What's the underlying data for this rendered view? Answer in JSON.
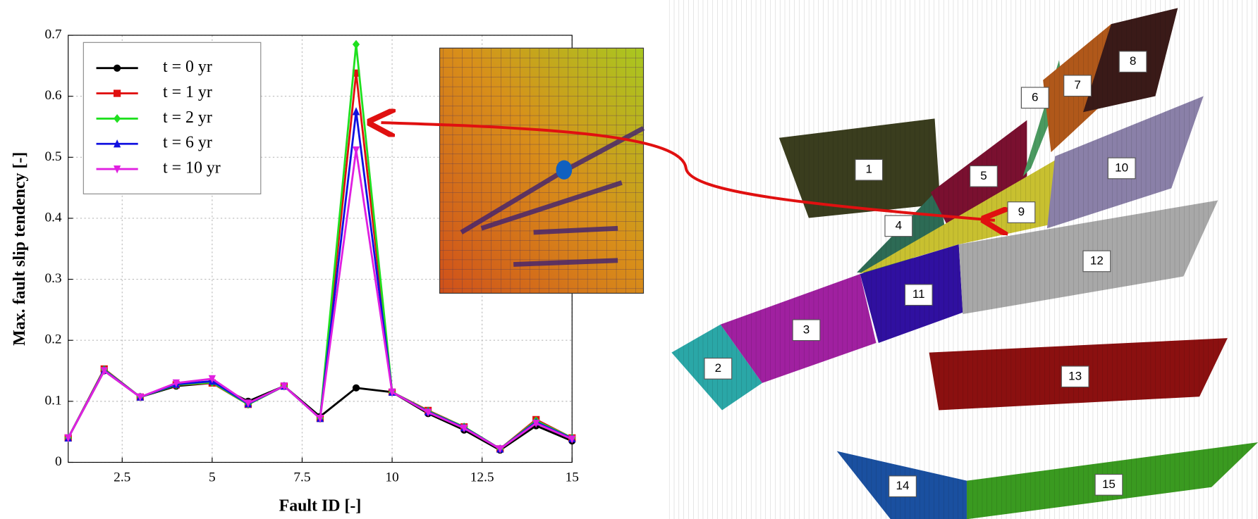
{
  "chart_data": {
    "type": "line",
    "x": [
      1,
      2,
      3,
      4,
      5,
      6,
      7,
      8,
      9,
      10,
      11,
      12,
      13,
      14,
      15
    ],
    "xlabel": "Fault ID [-]",
    "ylabel": "Max. fault slip tendency [-]",
    "xlim": [
      1,
      15
    ],
    "xticks": [
      2.5,
      5,
      7.5,
      10,
      12.5,
      15
    ],
    "ylim": [
      0,
      0.7
    ],
    "yticks": [
      0,
      0.1,
      0.2,
      0.3,
      0.4,
      0.5,
      0.6,
      0.7
    ],
    "grid": true,
    "legend": "upper left",
    "series": [
      {
        "name": "t = 0 yr",
        "color": "#000000",
        "marker": "circle",
        "values": [
          0.04,
          0.15,
          0.107,
          0.125,
          0.13,
          0.1,
          0.125,
          0.075,
          0.122,
          0.115,
          0.08,
          0.053,
          0.02,
          0.06,
          0.035
        ]
      },
      {
        "name": "t = 1 yr",
        "color": "#e01010",
        "marker": "square",
        "values": [
          0.04,
          0.153,
          0.107,
          0.127,
          0.13,
          0.095,
          0.125,
          0.072,
          0.638,
          0.115,
          0.085,
          0.058,
          0.022,
          0.07,
          0.04
        ]
      },
      {
        "name": "t = 2 yr",
        "color": "#20e020",
        "marker": "diamond",
        "values": [
          0.04,
          0.152,
          0.107,
          0.127,
          0.131,
          0.095,
          0.125,
          0.072,
          0.685,
          0.115,
          0.084,
          0.058,
          0.022,
          0.068,
          0.04
        ]
      },
      {
        "name": "t = 6 yr",
        "color": "#1010e0",
        "marker": "triangle",
        "values": [
          0.04,
          0.151,
          0.107,
          0.128,
          0.133,
          0.096,
          0.125,
          0.072,
          0.575,
          0.115,
          0.083,
          0.057,
          0.022,
          0.066,
          0.039
        ]
      },
      {
        "name": "t = 10 yr",
        "color": "#e020e0",
        "marker": "triangle-down",
        "values": [
          0.04,
          0.15,
          0.107,
          0.13,
          0.137,
          0.097,
          0.125,
          0.072,
          0.512,
          0.115,
          0.082,
          0.056,
          0.022,
          0.064,
          0.038
        ]
      }
    ]
  },
  "diagram": {
    "faults": [
      {
        "label": "1"
      },
      {
        "label": "2"
      },
      {
        "label": "3"
      },
      {
        "label": "4"
      },
      {
        "label": "5"
      },
      {
        "label": "6"
      },
      {
        "label": "7"
      },
      {
        "label": "8"
      },
      {
        "label": "9"
      },
      {
        "label": "10"
      },
      {
        "label": "11"
      },
      {
        "label": "12"
      },
      {
        "label": "13"
      },
      {
        "label": "14"
      },
      {
        "label": "15"
      }
    ]
  }
}
